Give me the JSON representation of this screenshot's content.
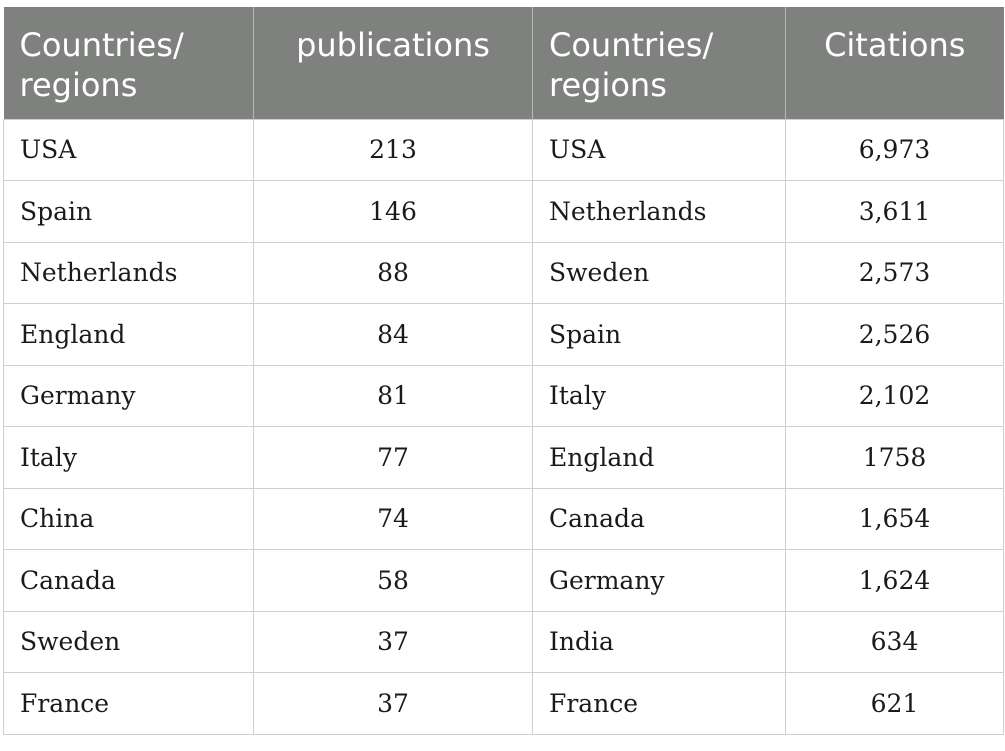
{
  "headers": [
    "Countries/ regions",
    "publications",
    "Countries/ regions",
    "Citations"
  ],
  "rows": [
    [
      "USA",
      "213",
      "USA",
      "6,973"
    ],
    [
      "Spain",
      "146",
      "Netherlands",
      "3,611"
    ],
    [
      "Netherlands",
      "88",
      "Sweden",
      "2,573"
    ],
    [
      "England",
      "84",
      "Spain",
      "2,526"
    ],
    [
      "Germany",
      "81",
      "Italy",
      "2,102"
    ],
    [
      "Italy",
      "77",
      "England",
      "1758"
    ],
    [
      "China",
      "74",
      "Canada",
      "1,654"
    ],
    [
      "Canada",
      "58",
      "Germany",
      "1,624"
    ],
    [
      "Sweden",
      "37",
      "India",
      "634"
    ],
    [
      "France",
      "37",
      "France",
      "621"
    ]
  ]
}
